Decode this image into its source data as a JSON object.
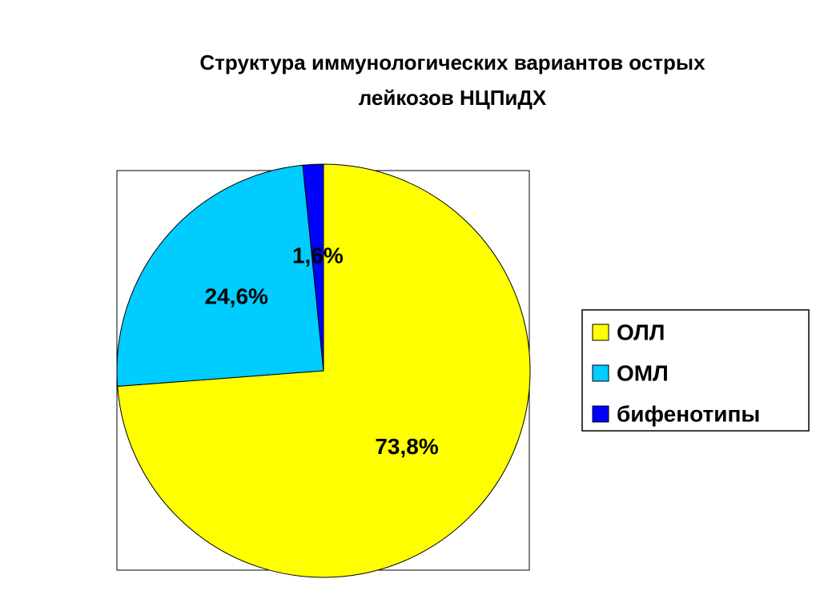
{
  "chart_data": {
    "type": "pie",
    "title": "Структура иммунологических вариантов острых лейкозов НЦПиДХ",
    "categories": [
      "ОЛЛ",
      "ОМЛ",
      "бифенотипы"
    ],
    "values": [
      73.8,
      24.6,
      1.6
    ],
    "value_labels": [
      "73,8%",
      "24,6%",
      "1,6%"
    ],
    "colors": [
      "#ffff00",
      "#00ccff",
      "#0000ff"
    ],
    "legend": "right"
  }
}
